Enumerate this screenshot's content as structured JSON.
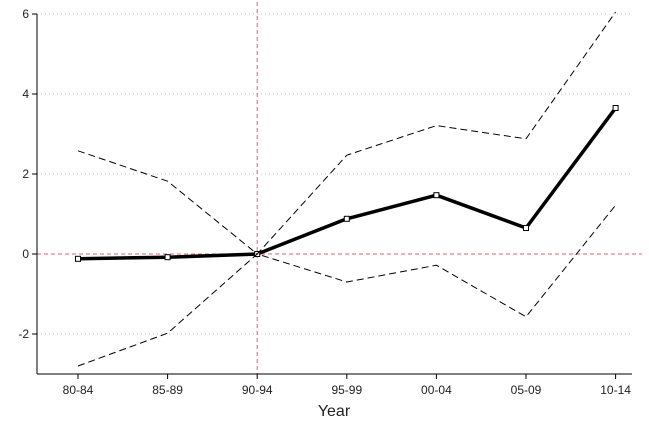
{
  "chart_data": {
    "type": "line",
    "title": "",
    "xlabel": "Year",
    "ylabel": "",
    "categories": [
      "80-84",
      "85-89",
      "90-94",
      "95-99",
      "00-04",
      "05-09",
      "10-14"
    ],
    "ylim": [
      -3.0,
      6.0
    ],
    "yticks": [
      -2,
      0,
      2,
      4,
      6
    ],
    "grid": "horizontal dotted",
    "legend": "none",
    "reference_lines": {
      "x_category": "90-94",
      "y_value": 0,
      "color": "#e06070"
    },
    "series": [
      {
        "role": "estimate",
        "style": "solid-thick-square-markers",
        "color": "#000000",
        "values": [
          -0.12,
          -0.08,
          0.0,
          0.88,
          1.47,
          0.65,
          3.65
        ]
      },
      {
        "role": "upper-bound",
        "style": "dashed",
        "color": "#000000",
        "values": [
          2.58,
          1.82,
          0.0,
          2.47,
          3.21,
          2.88,
          6.05
        ]
      },
      {
        "role": "lower-bound",
        "style": "dashed",
        "color": "#000000",
        "values": [
          -2.8,
          -1.98,
          0.0,
          -0.7,
          -0.28,
          -1.57,
          1.22
        ]
      }
    ]
  }
}
